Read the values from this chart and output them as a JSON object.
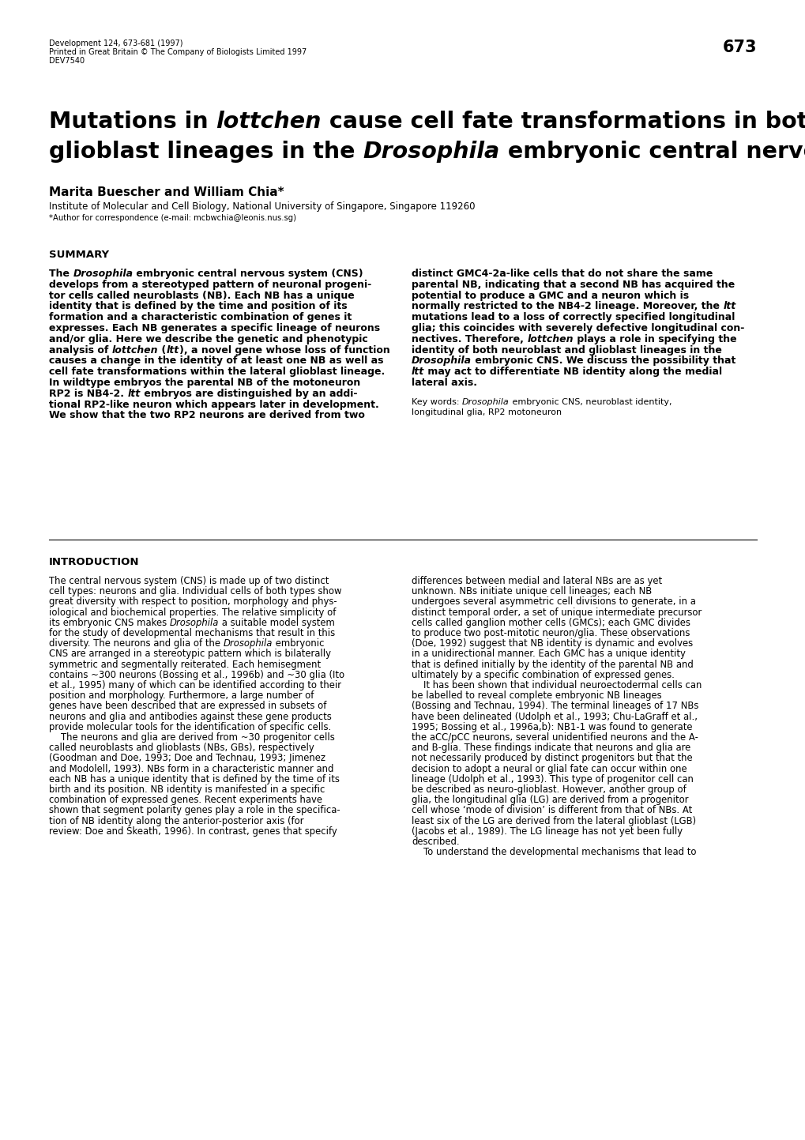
{
  "bg": "#ffffff",
  "page_num": "673",
  "jline1": "Development 124, 673-681 (1997)",
  "jline2": "Printed in Great Britain © The Company of Biologists Limited 1997",
  "jline3": "DEV7540",
  "authors": "Marita Buescher and William Chia*",
  "affil": "Institute of Molecular and Cell Biology, National University of Singapore, Singapore 119260",
  "corresp": "*Author for correspondence (e-mail: mcbwchia@leonis.nus.sg)",
  "sum_head": "SUMMARY",
  "intro_head": "INTRODUCTION",
  "kw1": "Key words: ",
  "kw1i": "Drosophila",
  "kw2": " embryonic CNS, neuroblast identity,",
  "kw3": "longitudinal glia, RP2 motoneuron",
  "title1_plain": "Mutations in ",
  "title1_italic": "lottchen",
  "title1_rest": " cause cell fate transformations in both neuroblast and",
  "title2_plain": "glioblast lineages in the ",
  "title2_italic": "Drosophila",
  "title2_rest": " embryonic central nervous system",
  "sum_left_lines": [
    [
      {
        "t": "The ",
        "b": 1,
        "i": 0
      },
      {
        "t": "Drosophila",
        "b": 1,
        "i": 1
      },
      {
        "t": " embryonic central nervous system (CNS)",
        "b": 1,
        "i": 0
      }
    ],
    [
      {
        "t": "develops from a stereotyped pattern of neuronal progeni-",
        "b": 1,
        "i": 0
      }
    ],
    [
      {
        "t": "tor cells called neuroblasts (NB). Each NB has a unique",
        "b": 1,
        "i": 0
      }
    ],
    [
      {
        "t": "identity that is defined by the time and position of its",
        "b": 1,
        "i": 0
      }
    ],
    [
      {
        "t": "formation and a characteristic combination of genes it",
        "b": 1,
        "i": 0
      }
    ],
    [
      {
        "t": "expresses. Each NB generates a specific lineage of neurons",
        "b": 1,
        "i": 0
      }
    ],
    [
      {
        "t": "and/or glia. Here we describe the genetic and phenotypic",
        "b": 1,
        "i": 0
      }
    ],
    [
      {
        "t": "analysis of ",
        "b": 1,
        "i": 0
      },
      {
        "t": "lottchen",
        "b": 1,
        "i": 1
      },
      {
        "t": " (",
        "b": 1,
        "i": 0
      },
      {
        "t": "ltt",
        "b": 1,
        "i": 1
      },
      {
        "t": "), a novel gene whose loss of function",
        "b": 1,
        "i": 0
      }
    ],
    [
      {
        "t": "causes a change in the identity of at least one NB as well as",
        "b": 1,
        "i": 0
      }
    ],
    [
      {
        "t": "cell fate transformations within the lateral glioblast lineage.",
        "b": 1,
        "i": 0
      }
    ],
    [
      {
        "t": "In wildtype embryos the parental NB of the motoneuron",
        "b": 1,
        "i": 0
      }
    ],
    [
      {
        "t": "RP2 is NB4-2. ",
        "b": 1,
        "i": 0
      },
      {
        "t": "ltt",
        "b": 1,
        "i": 1
      },
      {
        "t": " embryos are distinguished by an addi-",
        "b": 1,
        "i": 0
      }
    ],
    [
      {
        "t": "tional RP2-like neuron which appears later in development.",
        "b": 1,
        "i": 0
      }
    ],
    [
      {
        "t": "We show that the two RP2 neurons are derived from two",
        "b": 1,
        "i": 0
      }
    ]
  ],
  "sum_right_lines": [
    [
      {
        "t": "distinct GMC4-2a-like cells that do not share the same",
        "b": 1,
        "i": 0
      }
    ],
    [
      {
        "t": "parental NB, indicating that a second NB has acquired the",
        "b": 1,
        "i": 0
      }
    ],
    [
      {
        "t": "potential to produce a GMC and a neuron which is",
        "b": 1,
        "i": 0
      }
    ],
    [
      {
        "t": "normally restricted to the NB4-2 lineage. Moreover, the ",
        "b": 1,
        "i": 0
      },
      {
        "t": "ltt",
        "b": 1,
        "i": 1
      }
    ],
    [
      {
        "t": "mutations lead to a loss of correctly specified longitudinal",
        "b": 1,
        "i": 0
      }
    ],
    [
      {
        "t": "glia; this coincides with severely defective longitudinal con-",
        "b": 1,
        "i": 0
      }
    ],
    [
      {
        "t": "nectives. Therefore, ",
        "b": 1,
        "i": 0
      },
      {
        "t": "lottchen",
        "b": 1,
        "i": 1
      },
      {
        "t": " plays a role in specifying the",
        "b": 1,
        "i": 0
      }
    ],
    [
      {
        "t": "identity of both neuroblast and glioblast lineages in the",
        "b": 1,
        "i": 0
      }
    ],
    [
      {
        "t": "",
        "b": 1,
        "i": 0
      },
      {
        "t": "Drosophila",
        "b": 1,
        "i": 1
      },
      {
        "t": " embryonic CNS. We discuss the possibility that",
        "b": 1,
        "i": 0
      }
    ],
    [
      {
        "t": "",
        "b": 1,
        "i": 0
      },
      {
        "t": "ltt",
        "b": 1,
        "i": 1
      },
      {
        "t": " may act to differentiate NB identity along the medial",
        "b": 1,
        "i": 0
      }
    ],
    [
      {
        "t": "lateral axis.",
        "b": 1,
        "i": 0
      }
    ]
  ],
  "intro_left_lines": [
    [
      {
        "t": "The central nervous system (CNS) is made up of two distinct",
        "b": 0,
        "i": 0
      }
    ],
    [
      {
        "t": "cell types: neurons and glia. Individual cells of both types show",
        "b": 0,
        "i": 0
      }
    ],
    [
      {
        "t": "great diversity with respect to position, morphology and phys-",
        "b": 0,
        "i": 0
      }
    ],
    [
      {
        "t": "iological and biochemical properties. The relative simplicity of",
        "b": 0,
        "i": 0
      }
    ],
    [
      {
        "t": "its embryonic CNS makes ",
        "b": 0,
        "i": 0
      },
      {
        "t": "Drosophila",
        "b": 0,
        "i": 1
      },
      {
        "t": " a suitable model system",
        "b": 0,
        "i": 0
      }
    ],
    [
      {
        "t": "for the study of developmental mechanisms that result in this",
        "b": 0,
        "i": 0
      }
    ],
    [
      {
        "t": "diversity. The neurons and glia of the ",
        "b": 0,
        "i": 0
      },
      {
        "t": "Drosophila",
        "b": 0,
        "i": 1
      },
      {
        "t": " embryonic",
        "b": 0,
        "i": 0
      }
    ],
    [
      {
        "t": "CNS are arranged in a stereotypic pattern which is bilaterally",
        "b": 0,
        "i": 0
      }
    ],
    [
      {
        "t": "symmetric and segmentally reiterated. Each hemisegment",
        "b": 0,
        "i": 0
      }
    ],
    [
      {
        "t": "contains ~300 neurons (Bossing et al., 1996b) and ~30 glia (Ito",
        "b": 0,
        "i": 0
      }
    ],
    [
      {
        "t": "et al., 1995) many of which can be identified according to their",
        "b": 0,
        "i": 0
      }
    ],
    [
      {
        "t": "position and morphology. Furthermore, a large number of",
        "b": 0,
        "i": 0
      }
    ],
    [
      {
        "t": "genes have been described that are expressed in subsets of",
        "b": 0,
        "i": 0
      }
    ],
    [
      {
        "t": "neurons and glia and antibodies against these gene products",
        "b": 0,
        "i": 0
      }
    ],
    [
      {
        "t": "provide molecular tools for the identification of specific cells.",
        "b": 0,
        "i": 0
      }
    ],
    [
      {
        "t": "    The neurons and glia are derived from ~30 progenitor cells",
        "b": 0,
        "i": 0
      }
    ],
    [
      {
        "t": "called neuroblasts and glioblasts (NBs, GBs), respectively",
        "b": 0,
        "i": 0
      }
    ],
    [
      {
        "t": "(Goodman and Doe, 1993; Doe and Technau, 1993; Jimenez",
        "b": 0,
        "i": 0
      }
    ],
    [
      {
        "t": "and Modolell, 1993). NBs form in a characteristic manner and",
        "b": 0,
        "i": 0
      }
    ],
    [
      {
        "t": "each NB has a unique identity that is defined by the time of its",
        "b": 0,
        "i": 0
      }
    ],
    [
      {
        "t": "birth and its position. NB identity is manifested in a specific",
        "b": 0,
        "i": 0
      }
    ],
    [
      {
        "t": "combination of expressed genes. Recent experiments have",
        "b": 0,
        "i": 0
      }
    ],
    [
      {
        "t": "shown that segment polarity genes play a role in the specifica-",
        "b": 0,
        "i": 0
      }
    ],
    [
      {
        "t": "tion of NB identity along the anterior-posterior axis (for",
        "b": 0,
        "i": 0
      }
    ],
    [
      {
        "t": "review: Doe and Skeath, 1996). In contrast, genes that specify",
        "b": 0,
        "i": 0
      }
    ]
  ],
  "intro_right_lines": [
    [
      {
        "t": "differences between medial and lateral NBs are as yet",
        "b": 0,
        "i": 0
      }
    ],
    [
      {
        "t": "unknown. NBs initiate unique cell lineages; each NB",
        "b": 0,
        "i": 0
      }
    ],
    [
      {
        "t": "undergoes several asymmetric cell divisions to generate, in a",
        "b": 0,
        "i": 0
      }
    ],
    [
      {
        "t": "distinct temporal order, a set of unique intermediate precursor",
        "b": 0,
        "i": 0
      }
    ],
    [
      {
        "t": "cells called ganglion mother cells (GMCs); each GMC divides",
        "b": 0,
        "i": 0
      }
    ],
    [
      {
        "t": "to produce two post-mitotic neuron/glia. These observations",
        "b": 0,
        "i": 0
      }
    ],
    [
      {
        "t": "(Doe, 1992) suggest that NB identity is dynamic and evolves",
        "b": 0,
        "i": 0
      }
    ],
    [
      {
        "t": "in a unidirectional manner. Each GMC has a unique identity",
        "b": 0,
        "i": 0
      }
    ],
    [
      {
        "t": "that is defined initially by the identity of the parental NB and",
        "b": 0,
        "i": 0
      }
    ],
    [
      {
        "t": "ultimately by a specific combination of expressed genes.",
        "b": 0,
        "i": 0
      }
    ],
    [
      {
        "t": "    It has been shown that individual neuroectodermal cells can",
        "b": 0,
        "i": 0
      }
    ],
    [
      {
        "t": "be labelled to reveal complete embryonic NB lineages",
        "b": 0,
        "i": 0
      }
    ],
    [
      {
        "t": "(Bossing and Technau, 1994). The terminal lineages of 17 NBs",
        "b": 0,
        "i": 0
      }
    ],
    [
      {
        "t": "have been delineated (Udolph et al., 1993; Chu-LaGraff et al.,",
        "b": 0,
        "i": 0
      }
    ],
    [
      {
        "t": "1995; Bossing et al., 1996a,b): NB1-1 was found to generate",
        "b": 0,
        "i": 0
      }
    ],
    [
      {
        "t": "the aCC/pCC neurons, several unidentified neurons and the A-",
        "b": 0,
        "i": 0
      }
    ],
    [
      {
        "t": "and B-glia. These findings indicate that neurons and glia are",
        "b": 0,
        "i": 0
      }
    ],
    [
      {
        "t": "not necessarily produced by distinct progenitors but that the",
        "b": 0,
        "i": 0
      }
    ],
    [
      {
        "t": "decision to adopt a neural or glial fate can occur within one",
        "b": 0,
        "i": 0
      }
    ],
    [
      {
        "t": "lineage (Udolph et al., 1993). This type of progenitor cell can",
        "b": 0,
        "i": 0
      }
    ],
    [
      {
        "t": "be described as neuro-glioblast. However, another group of",
        "b": 0,
        "i": 0
      }
    ],
    [
      {
        "t": "glia, the longitudinal glia (LG) are derived from a progenitor",
        "b": 0,
        "i": 0
      }
    ],
    [
      {
        "t": "cell whose ‘mode of division’ is different from that of NBs. At",
        "b": 0,
        "i": 0
      }
    ],
    [
      {
        "t": "least six of the LG are derived from the lateral glioblast (LGB)",
        "b": 0,
        "i": 0
      }
    ],
    [
      {
        "t": "(Jacobs et al., 1989). The LG lineage has not yet been fully",
        "b": 0,
        "i": 0
      }
    ],
    [
      {
        "t": "described.",
        "b": 0,
        "i": 0
      }
    ],
    [
      {
        "t": "    To understand the developmental mechanisms that lead to",
        "b": 0,
        "i": 0
      }
    ]
  ]
}
